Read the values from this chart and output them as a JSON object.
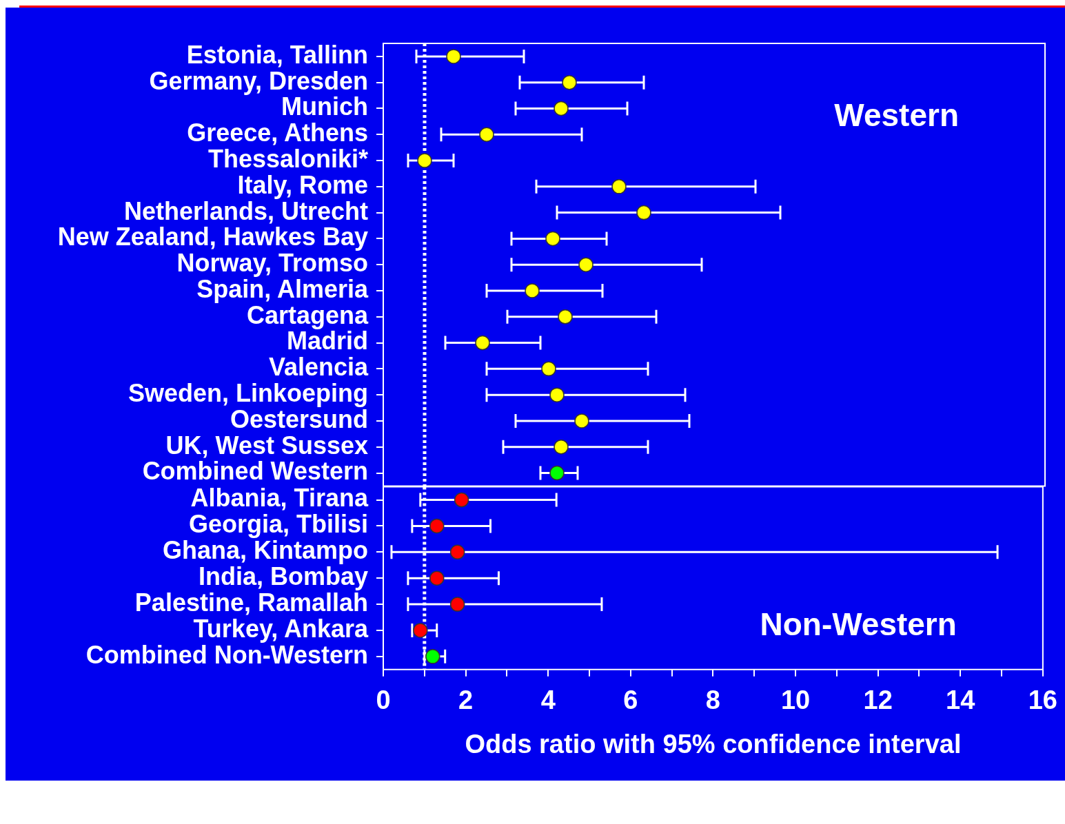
{
  "chart_data": [
    {
      "type": "scatter",
      "orientation": "horizontal",
      "marker": "circle",
      "grid": false,
      "tick_labels": "y",
      "categories": [
        "Estonia, Tallinn",
        "Germany, Dresden",
        "Munich",
        "Greece, Athens",
        "Thessaloniki*",
        "Italy, Rome",
        "Netherlands, Utrecht",
        "New Zealand, Hawkes Bay",
        "Norway, Tromso",
        "Spain, Almeria",
        "Cartagena",
        "Madrid",
        "Valencia",
        "Sweden, Linkoeping",
        "Oestersund",
        "UK, West Sussex",
        "Combined Western"
      ],
      "values": [
        1.7,
        4.5,
        4.3,
        2.5,
        1.0,
        5.7,
        6.3,
        4.1,
        4.9,
        3.6,
        4.4,
        2.4,
        4.0,
        4.2,
        4.8,
        4.3,
        4.2
      ],
      "errors": [
        [
          0.8,
          3.4
        ],
        [
          3.3,
          6.3
        ],
        [
          3.2,
          5.9
        ],
        [
          1.4,
          4.8
        ],
        [
          0.6,
          1.7
        ],
        [
          3.7,
          9.0
        ],
        [
          4.2,
          9.6
        ],
        [
          3.1,
          5.4
        ],
        [
          3.1,
          7.7
        ],
        [
          2.5,
          5.3
        ],
        [
          3.0,
          6.6
        ],
        [
          1.5,
          3.8
        ],
        [
          2.5,
          6.4
        ],
        [
          2.5,
          7.3
        ],
        [
          3.2,
          7.4
        ],
        [
          2.9,
          6.4
        ],
        [
          3.8,
          4.7
        ]
      ],
      "colors": [
        "#ffff00",
        "#ffff00",
        "#ffff00",
        "#ffff00",
        "#ffff00",
        "#ffff00",
        "#ffff00",
        "#ffff00",
        "#ffff00",
        "#ffff00",
        "#ffff00",
        "#ffff00",
        "#ffff00",
        "#ffff00",
        "#ffff00",
        "#ffff00",
        "#00ff00"
      ],
      "xlim": [
        0,
        16
      ],
      "xticks": [
        0,
        2,
        4,
        6,
        8,
        10,
        12,
        14,
        16
      ],
      "ref_lines": [
        {
          "axis": "x",
          "value": 1,
          "color": "#ffffff",
          "line_style": "dotted"
        }
      ],
      "annotations": [
        "Western"
      ]
    },
    {
      "type": "scatter",
      "orientation": "horizontal",
      "marker": "circle",
      "grid": false,
      "categories": [
        "Albania, Tirana",
        "Georgia, Tbilisi",
        "Ghana, Kintampo",
        "India, Bombay",
        "Palestine, Ramallah",
        "Turkey, Ankara",
        "Combined Non-Western"
      ],
      "values": [
        1.9,
        1.3,
        1.8,
        1.3,
        1.8,
        0.9,
        1.2
      ],
      "errors": [
        [
          0.9,
          4.2
        ],
        [
          0.7,
          2.6
        ],
        [
          0.2,
          14.9
        ],
        [
          0.6,
          2.8
        ],
        [
          0.6,
          5.3
        ],
        [
          0.7,
          1.3
        ],
        [
          1.0,
          1.5
        ]
      ],
      "colors": [
        "#ff0000",
        "#ff0000",
        "#ff0000",
        "#ff0000",
        "#ff0000",
        "#ff0000",
        "#00ff00"
      ],
      "xlim": [
        0,
        16
      ],
      "xticks": [
        0,
        {
          "value": 1,
          "label": null
        },
        2,
        {
          "value": 3,
          "label": null
        },
        4,
        {
          "value": 5,
          "label": null
        },
        6,
        {
          "value": 7,
          "label": null
        },
        8,
        {
          "value": 9,
          "label": null
        },
        10,
        {
          "value": 11,
          "label": null
        },
        12,
        {
          "value": 13,
          "label": null
        },
        14,
        {
          "value": 15,
          "label": null
        },
        16
      ],
      "xlabel": "Odds ratio with 95% confidence interval",
      "ref_lines": [
        {
          "axis": "x",
          "value": 1,
          "color": "#ffffff",
          "line_style": "dotted"
        }
      ],
      "annotations": [
        "Non-Western"
      ]
    }
  ]
}
